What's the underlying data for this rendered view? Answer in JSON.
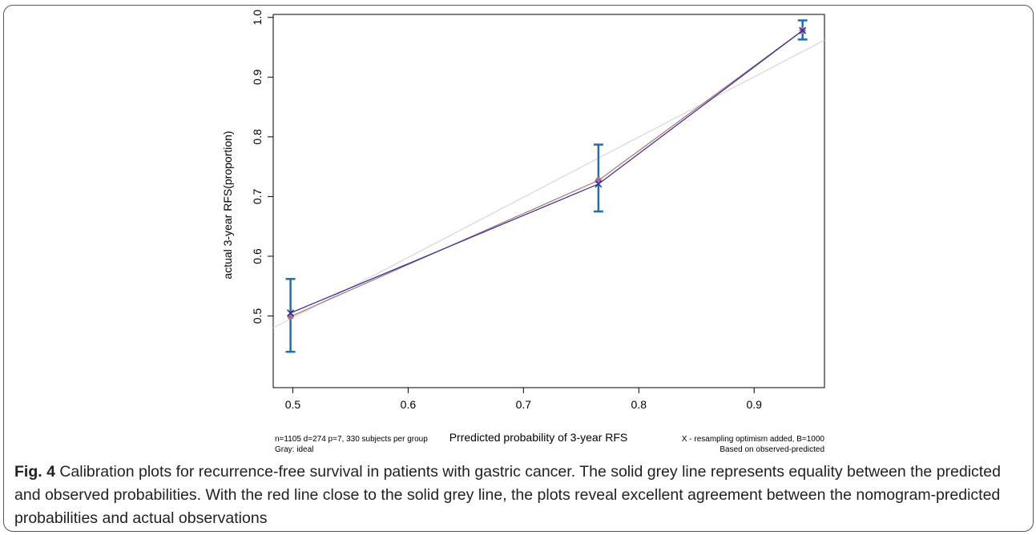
{
  "chart_data": {
    "type": "line",
    "xlabel": "Prredicted probability of 3-year RFS",
    "ylabel": "actual 3-year RFS(proportion)",
    "xlim": [
      0.483,
      0.961
    ],
    "ylim": [
      0.38,
      1.005
    ],
    "x_ticks": [
      0.5,
      0.6,
      0.7,
      0.8,
      0.9
    ],
    "x_tick_labels": [
      "0.5",
      "0.6",
      "0.7",
      "0.8",
      "0.9"
    ],
    "y_ticks": [
      0.5,
      0.6,
      0.7,
      0.8,
      0.9,
      1.0
    ],
    "y_tick_labels": [
      "0.5",
      "0.6",
      "0.7",
      "0.8",
      "0.9",
      "1.0"
    ],
    "grid": false,
    "series": [
      {
        "key": "ideal",
        "color": "#dcdcdc",
        "x": [
          0.483,
          0.961
        ],
        "y": [
          0.48,
          0.962
        ]
      },
      {
        "key": "apparent",
        "color": "#b07070",
        "marker": "circle",
        "x": [
          0.498,
          0.765,
          0.942
        ],
        "y": [
          0.499,
          0.727,
          0.978
        ]
      },
      {
        "key": "bias-corrected",
        "color": "#2a2aa0",
        "marker": "x",
        "x": [
          0.498,
          0.765,
          0.942
        ],
        "y": [
          0.505,
          0.721,
          0.978
        ]
      }
    ],
    "error_bars": {
      "color": "#1f6fb0",
      "x": [
        0.498,
        0.765,
        0.942
      ],
      "lower": [
        0.44,
        0.675,
        0.963
      ],
      "upper": [
        0.562,
        0.787,
        0.995
      ]
    },
    "annotations": {
      "bottom_left_1": "n=1105 d=274 p=7, 330 subjects per group",
      "bottom_left_2": "Gray: ideal",
      "bottom_right_1": "X - resampling optimism added, B=1000",
      "bottom_right_2": "Based on observed-predicted"
    }
  },
  "caption": {
    "label": "Fig. 4",
    "text": " Calibration plots for recurrence-free survival in patients with gastric cancer. The solid grey line represents equality between the predicted and observed probabilities. With the red line close to the solid grey line, the plots reveal excellent agreement between the nomogram-predicted probabilities and actual observations"
  }
}
